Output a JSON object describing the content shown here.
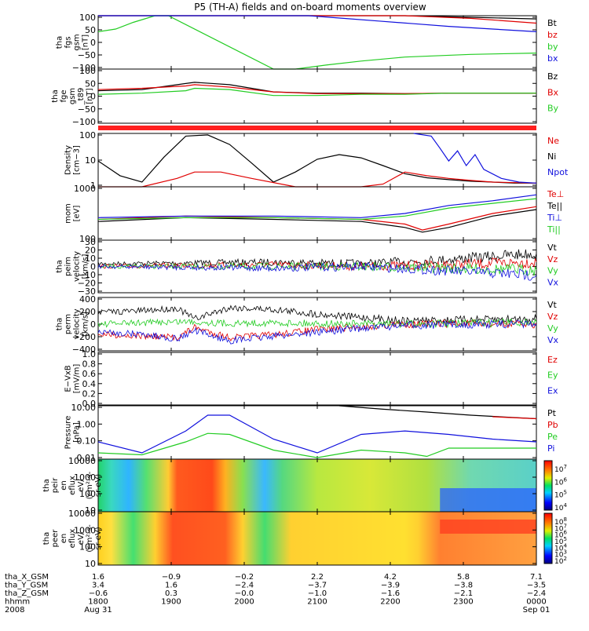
{
  "title": "P5 (TH-A) fields and on-board moments overview",
  "colors": {
    "black": "#000000",
    "red": "#e00000",
    "green": "#22cc22",
    "blue": "#1010dd"
  },
  "chart_data": [
    {
      "type": "line",
      "ylabel": [
        "tha",
        "fgs",
        "gsm",
        "[nT]"
      ],
      "yticks": [
        "100",
        "50",
        "0",
        "−50",
        "−100"
      ],
      "ylim": [
        -100,
        100
      ],
      "legend": [
        {
          "name": "Bt",
          "color": "#000000"
        },
        {
          "name": "bz",
          "color": "#e00000"
        },
        {
          "name": "by",
          "color": "#22cc22"
        },
        {
          "name": "bx",
          "color": "#1010dd"
        }
      ],
      "series": [
        {
          "name": "Bt",
          "color": "#000000",
          "x": [
            0.0,
            0.15,
            0.32,
            0.45,
            0.55,
            0.7,
            0.85,
            1.0
          ],
          "y": [
            100,
            100,
            100,
            100,
            100,
            100,
            94,
            88
          ]
        },
        {
          "name": "bz",
          "color": "#e00000",
          "x": [
            0.0,
            0.3,
            0.45,
            0.55,
            0.7,
            0.85,
            1.0
          ],
          "y": [
            100,
            100,
            100,
            100,
            100,
            90,
            72
          ]
        },
        {
          "name": "by",
          "color": "#22cc22",
          "x": [
            0.0,
            0.04,
            0.08,
            0.13,
            0.16,
            0.4,
            0.45,
            0.52,
            0.6,
            0.7,
            0.85,
            1.0
          ],
          "y": [
            40,
            50,
            75,
            100,
            100,
            -100,
            -100,
            -85,
            -70,
            -55,
            -45,
            -40
          ]
        },
        {
          "name": "bx",
          "color": "#1010dd",
          "x": [
            0.0,
            0.3,
            0.4,
            0.48,
            0.56,
            0.64,
            0.72,
            0.8,
            0.9,
            1.0
          ],
          "y": [
            100,
            100,
            100,
            100,
            90,
            80,
            70,
            60,
            50,
            40
          ]
        }
      ]
    },
    {
      "type": "line",
      "ylabel": [
        "tha",
        "fge",
        "gsm",
        "_t89",
        "[nT]"
      ],
      "yticks": [
        "100",
        "50",
        "0",
        "−50",
        "−100"
      ],
      "ylim": [
        -125,
        100
      ],
      "legend": [
        {
          "name": "Bz",
          "color": "#000000"
        },
        {
          "name": "Bx",
          "color": "#e00000"
        },
        {
          "name": "By",
          "color": "#22cc22"
        }
      ],
      "series": [
        {
          "name": "Bz",
          "color": "#000000",
          "x": [
            0.0,
            0.1,
            0.2,
            0.22,
            0.3,
            0.4,
            0.5,
            0.6,
            0.7,
            0.8,
            0.9,
            1.0
          ],
          "y": [
            10,
            15,
            40,
            45,
            35,
            5,
            0,
            0,
            -2,
            0,
            0,
            0
          ]
        },
        {
          "name": "Bx",
          "color": "#e00000",
          "x": [
            0.0,
            0.1,
            0.2,
            0.22,
            0.3,
            0.4,
            0.5,
            0.6,
            0.7,
            0.8,
            0.9,
            1.0
          ],
          "y": [
            15,
            20,
            30,
            35,
            25,
            5,
            -2,
            -2,
            -2,
            0,
            0,
            0
          ]
        },
        {
          "name": "By",
          "color": "#22cc22",
          "x": [
            0.0,
            0.1,
            0.2,
            0.22,
            0.3,
            0.4,
            0.5,
            0.6,
            0.7,
            0.8,
            0.9,
            1.0
          ],
          "y": [
            -5,
            0,
            10,
            20,
            15,
            -10,
            -10,
            -5,
            -5,
            0,
            0,
            0
          ]
        }
      ]
    },
    {
      "type": "line",
      "ylabel": [
        "Density",
        "[cm−3]"
      ],
      "yscale": "log",
      "ylim": [
        0.6,
        200
      ],
      "yticks": [
        "100",
        "10",
        "1"
      ],
      "legend": [
        {
          "name": "Ne",
          "color": "#e00000"
        },
        {
          "name": "Ni",
          "color": "#000000"
        },
        {
          "name": "Npot",
          "color": "#1010dd"
        }
      ],
      "series": [
        {
          "name": "Ni",
          "color": "#000000",
          "x": [
            0.0,
            0.05,
            0.1,
            0.15,
            0.2,
            0.25,
            0.3,
            0.35,
            0.4,
            0.45,
            0.5,
            0.55,
            0.6,
            0.65,
            0.7,
            0.75,
            0.8,
            0.85,
            0.9,
            0.95,
            1.0
          ],
          "y": [
            10,
            2,
            1,
            15,
            150,
            170,
            60,
            8,
            1,
            3,
            12,
            20,
            14,
            6,
            2.5,
            1.6,
            1.3,
            1.1,
            1.0,
            0.9,
            0.9
          ]
        },
        {
          "name": "Ne",
          "color": "#e00000",
          "x": [
            0.0,
            0.1,
            0.18,
            0.22,
            0.28,
            0.35,
            0.45,
            0.55,
            0.6,
            0.65,
            0.7,
            0.75,
            0.8,
            0.85,
            0.9,
            1.0
          ],
          "y": [
            0.6,
            0.6,
            1.5,
            3,
            3,
            1.5,
            0.6,
            0.6,
            0.6,
            0.8,
            3,
            2,
            1.5,
            1.2,
            1.0,
            0.9
          ]
        },
        {
          "name": "Npot",
          "color": "#1010dd",
          "x": [
            0.72,
            0.76,
            0.78,
            0.8,
            0.82,
            0.84,
            0.86,
            0.88,
            0.92,
            0.96,
            1.0
          ],
          "y": [
            200,
            150,
            40,
            10,
            30,
            6,
            20,
            4,
            1.5,
            1.0,
            0.9
          ]
        }
      ]
    },
    {
      "type": "line",
      "ylabel": [
        "mom",
        "[eV]"
      ],
      "yscale": "log",
      "ylim": [
        50,
        5000
      ],
      "yticks": [
        "1000",
        "100"
      ],
      "legend": [
        {
          "name": "Te⊥",
          "color": "#e00000"
        },
        {
          "name": "Te||",
          "color": "#000000"
        },
        {
          "name": "Ti⊥",
          "color": "#1010dd"
        },
        {
          "name": "Ti||",
          "color": "#22cc22"
        }
      ],
      "series": [
        {
          "name": "Te⊥",
          "color": "#e00000",
          "x": [
            0.0,
            0.2,
            0.4,
            0.6,
            0.7,
            0.74,
            0.8,
            0.9,
            1.0
          ],
          "y": [
            300,
            400,
            350,
            300,
            200,
            120,
            200,
            500,
            900
          ]
        },
        {
          "name": "Te||",
          "color": "#000000",
          "x": [
            0.0,
            0.2,
            0.4,
            0.6,
            0.7,
            0.74,
            0.8,
            0.9,
            1.0
          ],
          "y": [
            250,
            350,
            300,
            250,
            150,
            100,
            150,
            400,
            700
          ]
        },
        {
          "name": "Ti⊥",
          "color": "#1010dd",
          "x": [
            0.0,
            0.2,
            0.4,
            0.6,
            0.7,
            0.8,
            0.9,
            1.0
          ],
          "y": [
            350,
            400,
            400,
            350,
            500,
            1000,
            1500,
            2500
          ]
        },
        {
          "name": "Ti||",
          "color": "#22cc22",
          "x": [
            0.0,
            0.2,
            0.4,
            0.6,
            0.7,
            0.8,
            0.9,
            1.0
          ],
          "y": [
            300,
            350,
            350,
            300,
            400,
            800,
            1200,
            1800
          ]
        }
      ]
    },
    {
      "type": "line",
      "ylabel": [
        "tha",
        "peim",
        "velocity",
        "[km/s]"
      ],
      "ylim": [
        -30,
        30
      ],
      "yticks": [
        "30",
        "20",
        "10",
        "0",
        "−10",
        "−20",
        "−30"
      ],
      "legend": [
        {
          "name": "Vt",
          "color": "#000000"
        },
        {
          "name": "Vz",
          "color": "#e00000"
        },
        {
          "name": "Vy",
          "color": "#22cc22"
        },
        {
          "name": "Vx",
          "color": "#1010dd"
        }
      ],
      "series": [
        {
          "name": "Vt",
          "color": "#000000",
          "x": [
            0.0,
            0.2,
            0.4,
            0.6,
            0.8,
            1.0
          ],
          "y": [
            3,
            4,
            5,
            3,
            8,
            15
          ]
        },
        {
          "name": "Vz",
          "color": "#e00000",
          "x": [
            0.0,
            0.2,
            0.4,
            0.6,
            0.8,
            1.0
          ],
          "y": [
            0,
            1,
            2,
            0,
            2,
            5
          ]
        },
        {
          "name": "Vy",
          "color": "#22cc22",
          "x": [
            0.0,
            0.2,
            0.4,
            0.6,
            0.8,
            1.0
          ],
          "y": [
            0,
            0,
            0,
            0,
            -2,
            -4
          ]
        },
        {
          "name": "Vx",
          "color": "#1010dd",
          "x": [
            0.0,
            0.2,
            0.4,
            0.6,
            0.8,
            1.0
          ],
          "y": [
            0,
            -1,
            -2,
            0,
            -5,
            -10
          ]
        }
      ]
    },
    {
      "type": "line",
      "ylabel": [
        "tha",
        "perm",
        "velocity",
        "[km/s]"
      ],
      "ylim": [
        -400,
        400
      ],
      "yticks": [
        "400",
        "200",
        "0",
        "−200",
        "−400"
      ],
      "legend": [
        {
          "name": "Vt",
          "color": "#000000"
        },
        {
          "name": "Vz",
          "color": "#e00000"
        },
        {
          "name": "Vy",
          "color": "#22cc22"
        },
        {
          "name": "Vx",
          "color": "#1010dd"
        }
      ],
      "series": [
        {
          "name": "Vt",
          "color": "#000000",
          "x": [
            0.0,
            0.1,
            0.18,
            0.22,
            0.3,
            0.4,
            0.5,
            0.6,
            0.7,
            0.8,
            0.9,
            1.0
          ],
          "y": [
            180,
            200,
            240,
            80,
            250,
            220,
            150,
            100,
            50,
            60,
            70,
            80
          ]
        },
        {
          "name": "Vz",
          "color": "#e00000",
          "x": [
            0.0,
            0.1,
            0.18,
            0.22,
            0.3,
            0.4,
            0.5,
            0.6,
            0.7,
            0.8,
            0.9,
            1.0
          ],
          "y": [
            -150,
            -180,
            -200,
            -50,
            -200,
            -160,
            -80,
            -40,
            0,
            10,
            0,
            0
          ]
        },
        {
          "name": "Vy",
          "color": "#22cc22",
          "x": [
            0.0,
            0.1,
            0.2,
            0.3,
            0.4,
            0.5,
            0.6,
            0.7,
            0.8,
            0.9,
            1.0
          ],
          "y": [
            0,
            20,
            40,
            10,
            20,
            10,
            0,
            0,
            10,
            20,
            30
          ]
        },
        {
          "name": "Vx",
          "color": "#1010dd",
          "x": [
            0.0,
            0.1,
            0.18,
            0.22,
            0.3,
            0.4,
            0.5,
            0.6,
            0.7,
            0.8,
            0.9,
            1.0
          ],
          "y": [
            -120,
            -150,
            -220,
            -100,
            -250,
            -180,
            -120,
            -60,
            -20,
            -10,
            0,
            0
          ]
        }
      ]
    },
    {
      "type": "line",
      "ylabel": [
        "E−VxB",
        "[mV/m]"
      ],
      "ylim": [
        0,
        1
      ],
      "yticks": [
        "1.0",
        "0.8",
        "0.6",
        "0.4",
        "0.2",
        "0.0"
      ],
      "legend": [
        {
          "name": "Ez",
          "color": "#e00000"
        },
        {
          "name": "Ey",
          "color": "#22cc22"
        },
        {
          "name": "Ex",
          "color": "#1010dd"
        }
      ],
      "series": []
    },
    {
      "type": "line",
      "ylabel": [
        "Pressure",
        "[nPa]"
      ],
      "yscale": "log",
      "ylim": [
        0.008,
        20
      ],
      "yticks": [
        "10.00",
        "1.00",
        "0.10",
        "0.01"
      ],
      "legend": [
        {
          "name": "Pt",
          "color": "#000000"
        },
        {
          "name": "Pb",
          "color": "#e00000"
        },
        {
          "name": "Pe",
          "color": "#22cc22"
        },
        {
          "name": "Pi",
          "color": "#1010dd"
        }
      ],
      "series": [
        {
          "name": "Pt",
          "color": "#000000",
          "x": [
            0.55,
            0.65,
            0.75,
            0.85,
            1.0
          ],
          "y": [
            20,
            12,
            8,
            5,
            3
          ]
        },
        {
          "name": "Pb",
          "color": "#e00000",
          "x": [
            0.9,
            1.0
          ],
          "y": [
            4,
            3
          ]
        },
        {
          "name": "Pi",
          "color": "#1010dd",
          "x": [
            0.0,
            0.1,
            0.2,
            0.25,
            0.3,
            0.4,
            0.5,
            0.6,
            0.7,
            0.8,
            0.9,
            1.0
          ],
          "y": [
            0.1,
            0.02,
            0.5,
            5,
            5,
            0.15,
            0.02,
            0.3,
            0.5,
            0.3,
            0.15,
            0.1
          ]
        },
        {
          "name": "Pe",
          "color": "#22cc22",
          "x": [
            0.0,
            0.1,
            0.2,
            0.25,
            0.3,
            0.4,
            0.5,
            0.6,
            0.7,
            0.75,
            0.8,
            0.9,
            1.0
          ],
          "y": [
            0.02,
            0.015,
            0.1,
            0.35,
            0.3,
            0.03,
            0.01,
            0.03,
            0.02,
            0.012,
            0.04,
            0.04,
            0.04
          ]
        }
      ]
    },
    {
      "type": "heatmap",
      "ylabel": [
        "tha",
        "peir",
        "en",
        "eflux",
        "eV/",
        "(cm²-s-",
        "sr-eV)"
      ],
      "yscale": "log",
      "ylim": [
        10,
        20000
      ],
      "yticks": [
        "10000",
        "1000",
        "100",
        "10"
      ],
      "colorbar": {
        "min_exp": 3,
        "max_exp": 8,
        "labels": [
          "10",
          "10",
          "10",
          "10"
        ],
        "exponents": [
          "7",
          "6",
          "5",
          "4"
        ]
      }
    },
    {
      "type": "heatmap",
      "ylabel": [
        "tha",
        "peer",
        "en",
        "eflux",
        "eV/",
        "(cm²-s-",
        "sr-eV)"
      ],
      "yscale": "log",
      "ylim": [
        8,
        20000
      ],
      "yticks": [
        "10000",
        "1000",
        "100",
        "10"
      ],
      "colorbar": {
        "min_exp": 2,
        "max_exp": 8,
        "labels": [
          "10",
          "10",
          "10",
          "10",
          "10",
          "10",
          "10"
        ],
        "exponents": [
          "8",
          "7",
          "6",
          "5",
          "4",
          "3",
          "2"
        ]
      }
    }
  ],
  "footer": {
    "row_labels": [
      "tha_X_GSM",
      "tha_Y_GSM",
      "tha_Z_GSM",
      "hhmm",
      "2008"
    ],
    "columns": [
      {
        "v": [
          "1.6",
          "3.4",
          "−0.6",
          "1800",
          "Aug 31"
        ]
      },
      {
        "v": [
          "−0.9",
          "1.6",
          "0.3",
          "1900",
          ""
        ]
      },
      {
        "v": [
          "−0.2",
          "−2.4",
          "−0.0",
          "2000",
          ""
        ]
      },
      {
        "v": [
          "2.2",
          "−3.7",
          "−1.0",
          "2100",
          ""
        ]
      },
      {
        "v": [
          "4.2",
          "−3.9",
          "−1.6",
          "2200",
          ""
        ]
      },
      {
        "v": [
          "5.8",
          "−3.8",
          "−2.1",
          "2300",
          ""
        ]
      },
      {
        "v": [
          "7.1",
          "−3.5",
          "−2.4",
          "0000",
          "Sep 01"
        ]
      }
    ]
  }
}
